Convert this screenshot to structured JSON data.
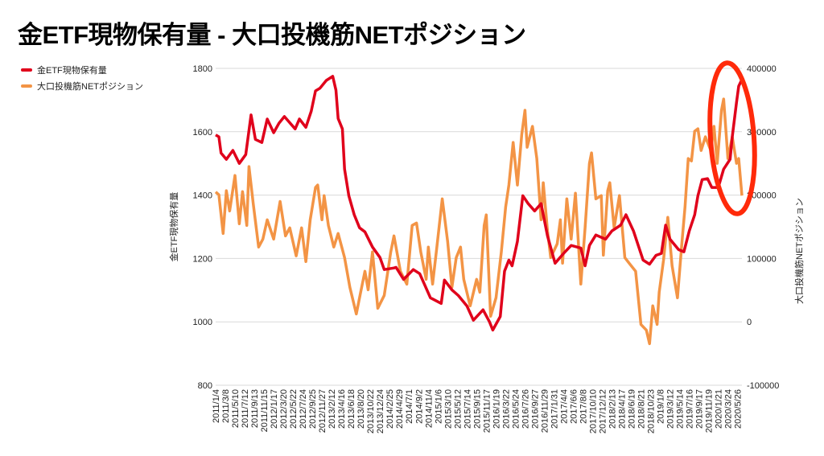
{
  "chart_data": {
    "type": "line",
    "title": "金ETF現物保有量 - 大口投機筋NETポジション",
    "xlabel": "",
    "ylabel": "金ETF現物保有量",
    "y2label": "大口投機筋NETポジション",
    "ylim": [
      800,
      1800
    ],
    "y2lim": [
      -100000,
      400000
    ],
    "yticks": [
      "800",
      "1000",
      "1200",
      "1400",
      "1600",
      "1800"
    ],
    "y2ticks": [
      "-100000",
      "0",
      "100000",
      "200000",
      "300000",
      "400000"
    ],
    "x_unit": "weeks since 2011/1/4",
    "xlim": [
      0,
      490
    ],
    "grid": true,
    "legend_position": "top-left",
    "x_tick_labels": [
      "2011/1/4",
      "2011/3/8",
      "2011/5/10",
      "2011/7/12",
      "2011/9/13",
      "2011/11/15",
      "2012/1/17",
      "2012/3/20",
      "2012/5/22",
      "2012/7/24",
      "2012/9/25",
      "2012/11/27",
      "2013/2/12",
      "2013/4/16",
      "2013/6/18",
      "2013/8/20",
      "2013/10/22",
      "2013/12/24",
      "2014/2/25",
      "2014/4/29",
      "2014/7/1",
      "2014/9/2",
      "2014/11/4",
      "2015/1/6",
      "2015/3/10",
      "2015/5/12",
      "2015/7/14",
      "2015/9/15",
      "2015/11/17",
      "2016/1/19",
      "2016/3/22",
      "2016/5/24",
      "2016/7/26",
      "2016/9/27",
      "2016/11/29",
      "2017/1/31",
      "2017/4/4",
      "2017/6/6",
      "2017/8/8",
      "2017/10/10",
      "2017/12/12",
      "2018/2/13",
      "2018/4/17",
      "2018/6/19",
      "2018/8/21",
      "2018/10/23",
      "2019/1/8",
      "2019/3/12",
      "2019/5/14",
      "2019/7/16",
      "2019/9/17",
      "2019/11/19",
      "2020/1/21",
      "2020/3/24",
      "2020/5/26"
    ],
    "x_tick_step_weeks": 9,
    "series": [
      {
        "name": "金ETF現物保有量",
        "axis": "left",
        "color": "#e0001b",
        "points": [
          [
            0,
            1590
          ],
          [
            3,
            1584
          ],
          [
            5,
            1533
          ],
          [
            10,
            1513
          ],
          [
            16,
            1541
          ],
          [
            22,
            1500
          ],
          [
            28,
            1528
          ],
          [
            33,
            1653
          ],
          [
            37,
            1576
          ],
          [
            43,
            1566
          ],
          [
            48,
            1640
          ],
          [
            54,
            1597
          ],
          [
            59,
            1627
          ],
          [
            64,
            1648
          ],
          [
            74,
            1609
          ],
          [
            78,
            1640
          ],
          [
            84,
            1614
          ],
          [
            89,
            1665
          ],
          [
            93,
            1729
          ],
          [
            97,
            1737
          ],
          [
            103,
            1762
          ],
          [
            109,
            1775
          ],
          [
            112,
            1731
          ],
          [
            114,
            1642
          ],
          [
            118,
            1609
          ],
          [
            120,
            1482
          ],
          [
            124,
            1398
          ],
          [
            129,
            1338
          ],
          [
            134,
            1297
          ],
          [
            139,
            1284
          ],
          [
            146,
            1236
          ],
          [
            153,
            1203
          ],
          [
            157,
            1165
          ],
          [
            166,
            1170
          ],
          [
            168,
            1172
          ],
          [
            175,
            1134
          ],
          [
            184,
            1165
          ],
          [
            190,
            1152
          ],
          [
            200,
            1076
          ],
          [
            210,
            1058
          ],
          [
            213,
            1132
          ],
          [
            220,
            1101
          ],
          [
            226,
            1083
          ],
          [
            234,
            1050
          ],
          [
            240,
            1005
          ],
          [
            249,
            1038
          ],
          [
            255,
            1000
          ],
          [
            258,
            974
          ],
          [
            265,
            1017
          ],
          [
            269,
            1160
          ],
          [
            273,
            1195
          ],
          [
            276,
            1177
          ],
          [
            281,
            1254
          ],
          [
            286,
            1398
          ],
          [
            291,
            1373
          ],
          [
            297,
            1350
          ],
          [
            303,
            1373
          ],
          [
            309,
            1271
          ],
          [
            316,
            1185
          ],
          [
            324,
            1216
          ],
          [
            331,
            1241
          ],
          [
            340,
            1233
          ],
          [
            344,
            1177
          ],
          [
            348,
            1241
          ],
          [
            354,
            1274
          ],
          [
            363,
            1261
          ],
          [
            369,
            1287
          ],
          [
            377,
            1305
          ],
          [
            382,
            1338
          ],
          [
            389,
            1287
          ],
          [
            398,
            1195
          ],
          [
            404,
            1182
          ],
          [
            410,
            1210
          ],
          [
            415,
            1216
          ],
          [
            419,
            1305
          ],
          [
            423,
            1261
          ],
          [
            431,
            1228
          ],
          [
            436,
            1221
          ],
          [
            441,
            1287
          ],
          [
            446,
            1338
          ],
          [
            449,
            1398
          ],
          [
            453,
            1449
          ],
          [
            458,
            1452
          ],
          [
            462,
            1424
          ],
          [
            468,
            1424
          ],
          [
            473,
            1482
          ],
          [
            479,
            1513
          ],
          [
            481,
            1584
          ],
          [
            485,
            1693
          ],
          [
            487,
            1744
          ],
          [
            490,
            1765
          ]
        ]
      },
      {
        "name": "大口投機筋NETポジション",
        "axis": "right",
        "color": "#f39445",
        "points": [
          [
            0,
            205000
          ],
          [
            3,
            200500
          ],
          [
            7,
            139500
          ],
          [
            10,
            207000
          ],
          [
            13,
            175000
          ],
          [
            18,
            231000
          ],
          [
            22,
            154800
          ],
          [
            25,
            205600
          ],
          [
            29,
            152200
          ],
          [
            31,
            245000
          ],
          [
            35,
            186500
          ],
          [
            40,
            118000
          ],
          [
            44,
            130600
          ],
          [
            48,
            161100
          ],
          [
            54,
            130600
          ],
          [
            60,
            190000
          ],
          [
            65,
            135700
          ],
          [
            69,
            148400
          ],
          [
            75,
            104000
          ],
          [
            80,
            148400
          ],
          [
            84,
            95000
          ],
          [
            88,
            161100
          ],
          [
            93,
            212000
          ],
          [
            95,
            215800
          ],
          [
            99,
            161100
          ],
          [
            101,
            199300
          ],
          [
            105,
            152200
          ],
          [
            110,
            118000
          ],
          [
            114,
            139500
          ],
          [
            120,
            101400
          ],
          [
            125,
            54400
          ],
          [
            131,
            12500
          ],
          [
            135,
            46800
          ],
          [
            139,
            79800
          ],
          [
            142,
            50600
          ],
          [
            146,
            110300
          ],
          [
            151,
            21400
          ],
          [
            157,
            41700
          ],
          [
            163,
            110300
          ],
          [
            166,
            135700
          ],
          [
            172,
            79800
          ],
          [
            178,
            59500
          ],
          [
            183,
            152200
          ],
          [
            187,
            156000
          ],
          [
            191,
            110300
          ],
          [
            196,
            67100
          ],
          [
            198,
            118000
          ],
          [
            202,
            59500
          ],
          [
            206,
            118000
          ],
          [
            211,
            194200
          ],
          [
            216,
            126800
          ],
          [
            220,
            54400
          ],
          [
            224,
            101400
          ],
          [
            228,
            118000
          ],
          [
            231,
            67100
          ],
          [
            237,
            25200
          ],
          [
            243,
            67100
          ],
          [
            246,
            46800
          ],
          [
            250,
            152200
          ],
          [
            252,
            168800
          ],
          [
            256,
            8700
          ],
          [
            261,
            37900
          ],
          [
            266,
            110300
          ],
          [
            270,
            181500
          ],
          [
            273,
            215800
          ],
          [
            277,
            283100
          ],
          [
            281,
            215800
          ],
          [
            285,
            295800
          ],
          [
            288,
            333900
          ],
          [
            290,
            275500
          ],
          [
            295,
            308500
          ],
          [
            299,
            257700
          ],
          [
            303,
            161100
          ],
          [
            305,
            219600
          ],
          [
            309,
            143300
          ],
          [
            312,
            101400
          ],
          [
            318,
            123000
          ],
          [
            321,
            161100
          ],
          [
            323,
            92500
          ],
          [
            327,
            194200
          ],
          [
            331,
            130600
          ],
          [
            335,
            203000
          ],
          [
            340,
            59500
          ],
          [
            344,
            148400
          ],
          [
            348,
            250100
          ],
          [
            350,
            266600
          ],
          [
            354,
            194200
          ],
          [
            359,
            199300
          ],
          [
            361,
            105200
          ],
          [
            365,
            206900
          ],
          [
            367,
            219600
          ],
          [
            371,
            148400
          ],
          [
            376,
            199300
          ],
          [
            381,
            101400
          ],
          [
            385,
            92500
          ],
          [
            391,
            79800
          ],
          [
            396,
            -4100
          ],
          [
            401,
            -12900
          ],
          [
            404,
            -34500
          ],
          [
            407,
            25200
          ],
          [
            411,
            -4100
          ],
          [
            413,
            46800
          ],
          [
            417,
            97600
          ],
          [
            421,
            164900
          ],
          [
            425,
            88700
          ],
          [
            430,
            37900
          ],
          [
            434,
            123000
          ],
          [
            437,
            181500
          ],
          [
            440,
            257700
          ],
          [
            443,
            253900
          ],
          [
            446,
            300900
          ],
          [
            449,
            304700
          ],
          [
            452,
            270400
          ],
          [
            456,
            292000
          ],
          [
            461,
            270400
          ],
          [
            464,
            308500
          ],
          [
            467,
            250100
          ],
          [
            471,
            333900
          ],
          [
            473,
            351700
          ],
          [
            477,
            257700
          ],
          [
            481,
            292000
          ],
          [
            485,
            250100
          ],
          [
            487,
            257700
          ],
          [
            490,
            199300
          ]
        ]
      }
    ]
  },
  "annotation_color": "#ff2a0a"
}
